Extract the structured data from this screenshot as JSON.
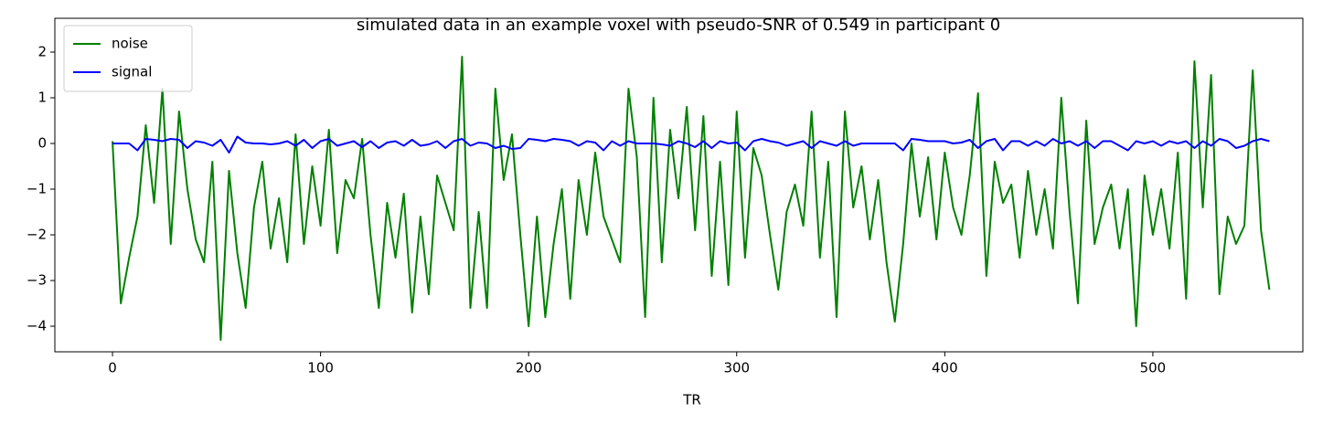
{
  "chart_data": {
    "type": "line",
    "title": "simulated data in an example voxel with pseudo-SNR of 0.549 in participant 0",
    "xlabel": "TR",
    "xlim": [
      -27.7,
      572.1
    ],
    "ylim": [
      -4.56,
      2.74
    ],
    "xticks": [
      0,
      100,
      200,
      300,
      400,
      500
    ],
    "yticks": [
      {
        "value": -4,
        "label": "−4"
      },
      {
        "value": -3,
        "label": "−3"
      },
      {
        "value": -2,
        "label": "−2"
      },
      {
        "value": -1,
        "label": "−1"
      },
      0,
      1,
      2
    ],
    "legend": "upper left",
    "x": [
      0,
      4,
      8,
      12,
      16,
      20,
      24,
      28,
      32,
      36,
      40,
      44,
      48,
      52,
      56,
      60,
      64,
      68,
      72,
      76,
      80,
      84,
      88,
      92,
      96,
      100,
      104,
      108,
      112,
      116,
      120,
      124,
      128,
      132,
      136,
      140,
      144,
      148,
      152,
      156,
      160,
      164,
      168,
      172,
      176,
      180,
      184,
      188,
      192,
      196,
      200,
      204,
      208,
      212,
      216,
      220,
      224,
      228,
      232,
      236,
      240,
      244,
      248,
      252,
      256,
      260,
      264,
      268,
      272,
      276,
      280,
      284,
      288,
      292,
      296,
      300,
      304,
      308,
      312,
      316,
      320,
      324,
      328,
      332,
      336,
      340,
      344,
      348,
      352,
      356,
      360,
      364,
      368,
      372,
      376,
      380,
      384,
      388,
      392,
      396,
      400,
      404,
      408,
      412,
      416,
      420,
      424,
      428,
      432,
      436,
      440,
      444,
      448,
      452,
      456,
      460,
      464,
      468,
      472,
      476,
      480,
      484,
      488,
      492,
      496,
      500,
      504,
      508,
      512,
      516,
      520,
      524,
      528,
      532,
      536,
      540,
      544,
      548,
      552,
      556
    ],
    "series": [
      {
        "name": "noise",
        "color": "#008000",
        "values": [
          0.05,
          -3.5,
          -2.5,
          -1.6,
          0.4,
          -1.3,
          1.2,
          -2.2,
          0.7,
          -1.0,
          -2.1,
          -2.6,
          -0.4,
          -4.3,
          -0.6,
          -2.4,
          -3.6,
          -1.4,
          -0.4,
          -2.3,
          -1.2,
          -2.6,
          0.2,
          -2.2,
          -0.5,
          -1.8,
          0.3,
          -2.4,
          -0.8,
          -1.2,
          0.1,
          -2.0,
          -3.6,
          -1.3,
          -2.5,
          -1.1,
          -3.7,
          -1.6,
          -3.3,
          -0.7,
          -1.3,
          -1.9,
          1.9,
          -3.6,
          -1.5,
          -3.6,
          1.2,
          -0.8,
          0.2,
          -2.0,
          -4.0,
          -1.6,
          -3.8,
          -2.2,
          -1.0,
          -3.4,
          -0.8,
          -2.0,
          -0.2,
          -1.6,
          -2.1,
          -2.6,
          1.2,
          -0.3,
          -3.8,
          1.0,
          -2.6,
          0.3,
          -1.2,
          0.8,
          -1.9,
          0.6,
          -2.9,
          -0.4,
          -3.1,
          0.7,
          -2.5,
          -0.1,
          -0.7,
          -2.0,
          -3.2,
          -1.5,
          -0.9,
          -1.8,
          0.7,
          -2.5,
          -0.4,
          -3.8,
          0.7,
          -1.4,
          -0.5,
          -2.1,
          -0.8,
          -2.6,
          -3.9,
          -2.2,
          0.0,
          -1.6,
          -0.3,
          -2.1,
          -0.2,
          -1.4,
          -2.0,
          -0.7,
          1.1,
          -2.9,
          -0.4,
          -1.3,
          -0.9,
          -2.5,
          -0.6,
          -2.0,
          -1.0,
          -2.3,
          1.0,
          -1.5,
          -3.5,
          0.5,
          -2.2,
          -1.4,
          -0.9,
          -2.3,
          -1.0,
          -4.0,
          -0.7,
          -2.0,
          -1.0,
          -2.3,
          -0.2,
          -3.4,
          1.8,
          -1.4,
          1.5,
          -3.3,
          -1.6,
          -2.2,
          -1.8,
          1.6,
          -1.9,
          -3.2
        ]
      },
      {
        "name": "signal",
        "color": "#0000ff",
        "values": [
          0,
          0,
          0,
          -0.15,
          0.1,
          0.08,
          0.05,
          0.1,
          0.08,
          -0.1,
          0.05,
          0.02,
          -0.05,
          0.08,
          -0.2,
          0.15,
          0.02,
          0,
          0,
          -0.02,
          0,
          0.05,
          -0.05,
          0.08,
          -0.1,
          0.05,
          0.1,
          -0.05,
          0,
          0.05,
          -0.08,
          0.05,
          -0.1,
          0.02,
          0.05,
          -0.05,
          0.08,
          -0.05,
          -0.02,
          0.05,
          -0.1,
          0.05,
          0.1,
          -0.05,
          0.02,
          0,
          -0.1,
          -0.05,
          -0.12,
          -0.1,
          0.1,
          0.08,
          0.05,
          0.1,
          0.08,
          0.05,
          -0.05,
          0.05,
          0.02,
          -0.15,
          0.05,
          -0.05,
          0.05,
          0,
          0,
          0,
          -0.02,
          -0.05,
          0.05,
          0,
          -0.08,
          0.05,
          -0.1,
          0.05,
          0,
          0.02,
          -0.15,
          0.05,
          0.1,
          0.05,
          0.02,
          -0.05,
          0,
          0.05,
          -0.1,
          0.05,
          0,
          -0.05,
          0.05,
          -0.05,
          0,
          0,
          0,
          0,
          0,
          -0.15,
          0.1,
          0.08,
          0.05,
          0.05,
          0.05,
          0,
          0.02,
          0.08,
          -0.1,
          0.05,
          0.1,
          -0.15,
          0.05,
          0.05,
          -0.05,
          0.05,
          -0.05,
          0.1,
          0,
          0.05,
          -0.05,
          0.05,
          -0.1,
          0.05,
          0.05,
          -0.05,
          -0.15,
          0.05,
          0,
          0.05,
          -0.05,
          0.05,
          0,
          0.05,
          -0.1,
          0.05,
          -0.05,
          0.1,
          0.05,
          -0.1,
          -0.05,
          0.05,
          0.1,
          0.05
        ]
      }
    ]
  }
}
